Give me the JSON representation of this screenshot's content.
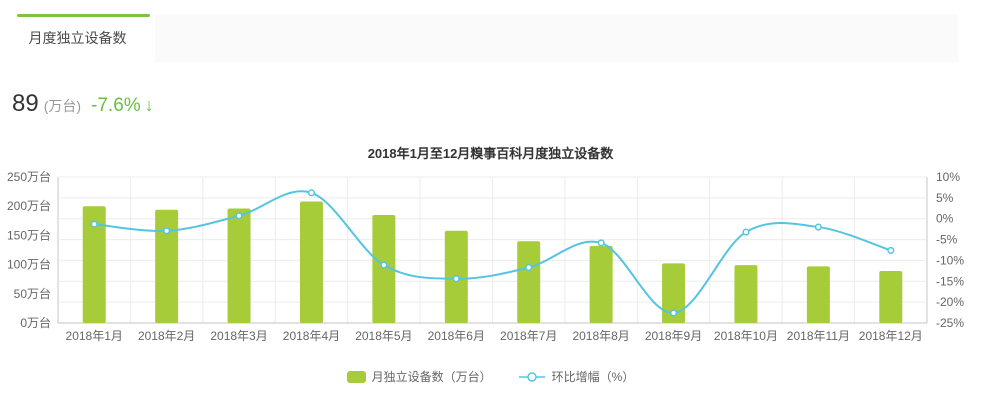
{
  "tabs": [
    {
      "label": "月度独立设备数",
      "active": true
    }
  ],
  "stat": {
    "value": "89",
    "unit": "(万台)",
    "change": "-7.6%",
    "arrow": "↓",
    "direction": "down"
  },
  "colors": {
    "bar": "#a6cc3a",
    "line": "#54c5e0",
    "tab_bg": "#fafafa",
    "tab_indicator": "#7fc241",
    "change": "#67bf41",
    "grid": "#ececec",
    "axis": "#c4c4c4",
    "tick_text": "#666666",
    "title_text": "#333333"
  },
  "chart_data": {
    "type": "combo",
    "title": "2018年1月至12月糗事百科月度独立设备数",
    "categories": [
      "2018年1月",
      "2018年2月",
      "2018年3月",
      "2018年4月",
      "2018年5月",
      "2018年6月",
      "2018年7月",
      "2018年8月",
      "2018年9月",
      "2018年10月",
      "2018年11月",
      "2018年12月"
    ],
    "series": [
      {
        "name": "月独立设备数（万台）",
        "type": "bar",
        "axis": "left",
        "color": "#a6cc3a",
        "values": [
          200,
          194,
          196,
          208,
          185,
          158,
          140,
          132,
          102,
          99,
          97,
          89
        ]
      },
      {
        "name": "环比增幅（%）",
        "type": "line",
        "axis": "right",
        "color": "#54c5e0",
        "values": [
          -1.3,
          -2.9,
          0.7,
          6.2,
          -11.1,
          -14.4,
          -11.7,
          -5.8,
          -22.6,
          -3.2,
          -2.0,
          -7.6
        ]
      }
    ],
    "left_axis": {
      "min": 0,
      "max": 250,
      "unit": "万台",
      "ticks": [
        "250万台",
        "200万台",
        "150万台",
        "100万台",
        "50万台",
        "0万台"
      ]
    },
    "right_axis": {
      "min": -25,
      "max": 10,
      "unit": "%",
      "ticks": [
        "10%",
        "5%",
        "0%",
        "-5%",
        "-10%",
        "-15%",
        "-20%",
        "-25%"
      ]
    },
    "grid": true,
    "legend_position": "bottom"
  }
}
